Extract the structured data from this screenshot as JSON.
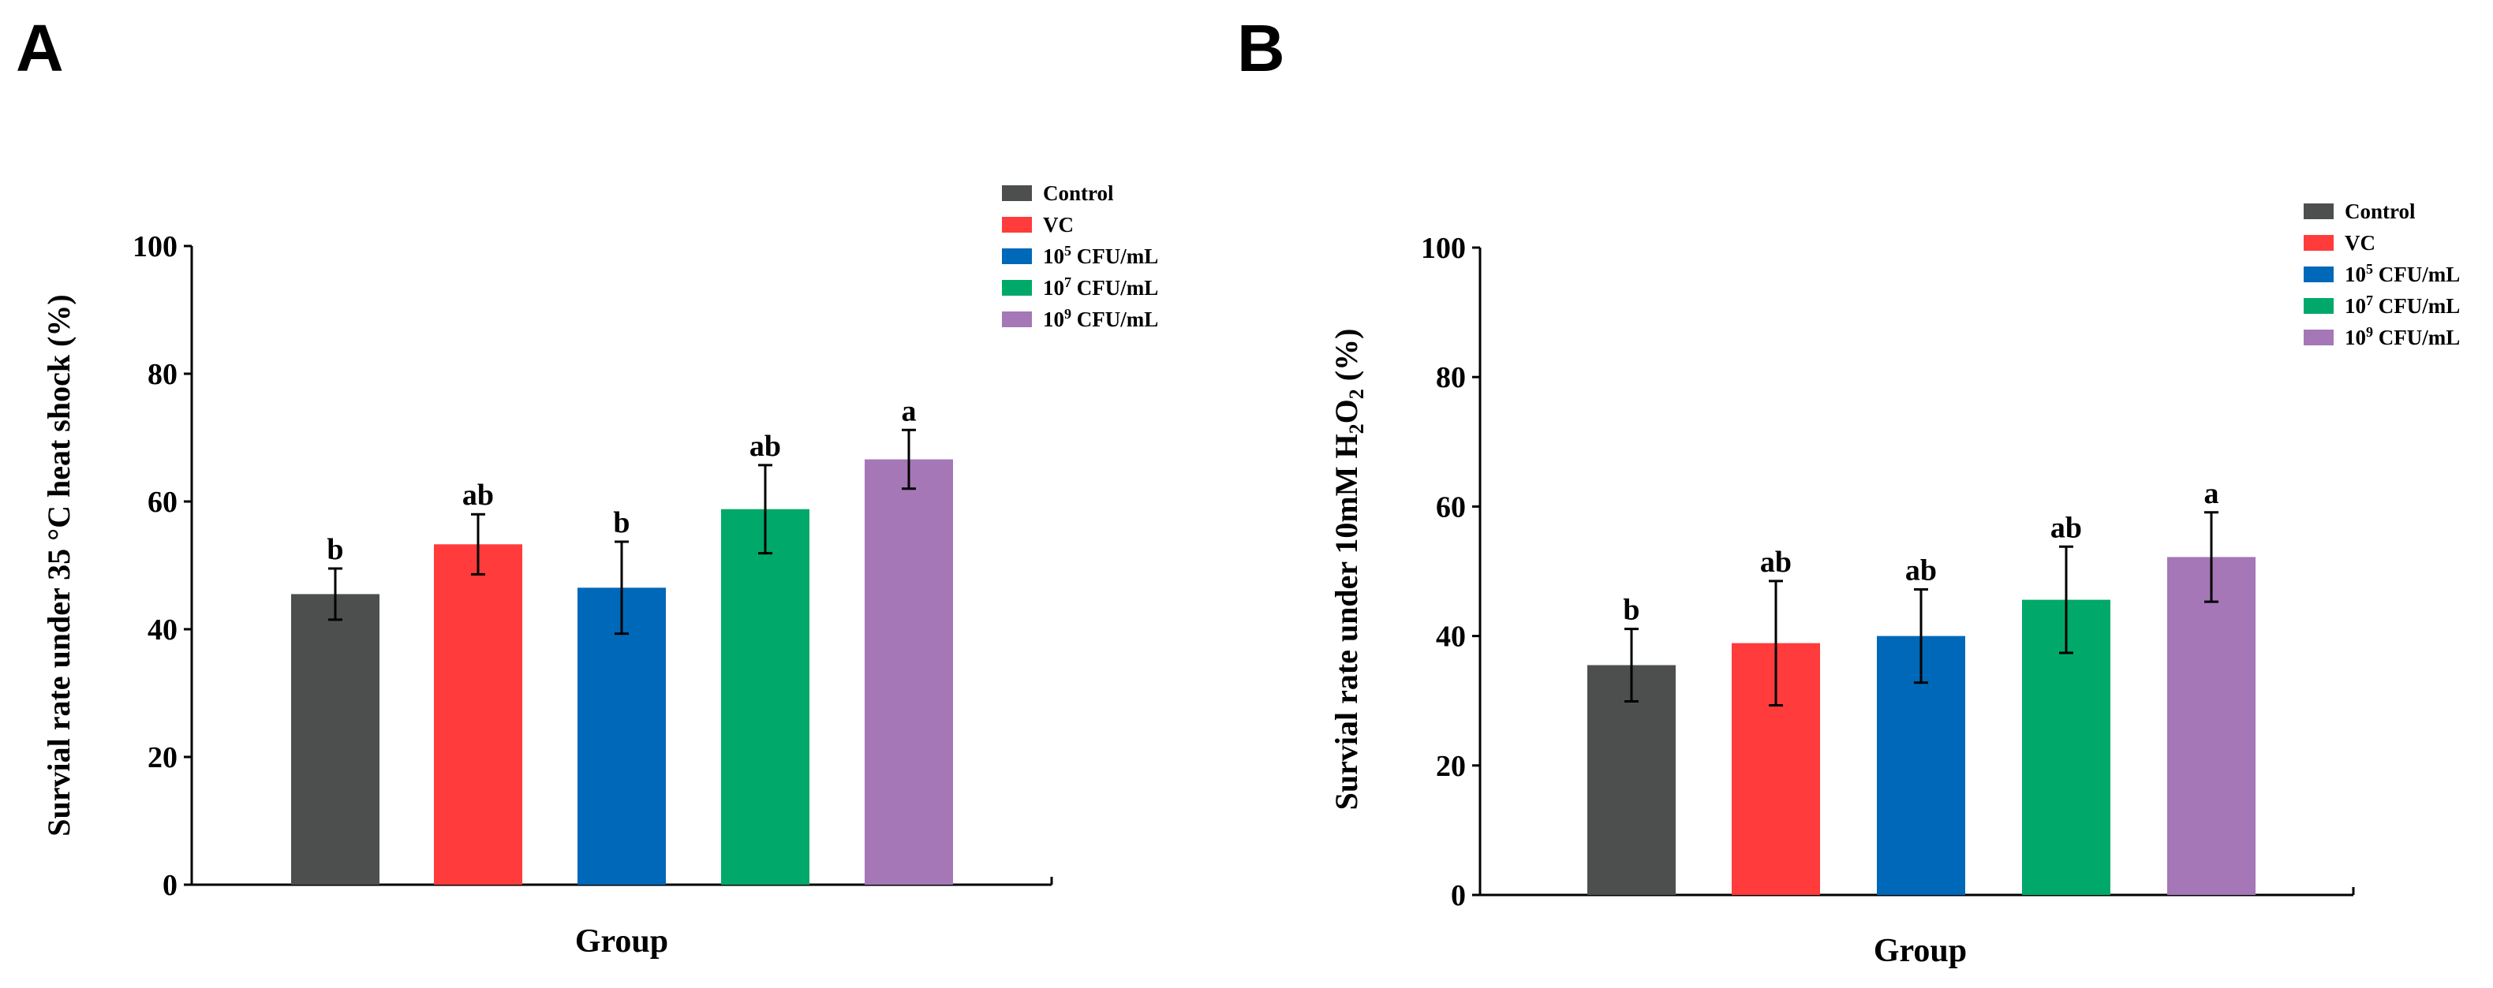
{
  "figure": {
    "panels": [
      "A",
      "B"
    ]
  },
  "legend": {
    "items": [
      {
        "base": "Control",
        "sup": "",
        "rest": "",
        "color": "#4d4f4f"
      },
      {
        "base": "VC",
        "sup": "",
        "rest": "",
        "color": "#ff3b3b"
      },
      {
        "base": "10",
        "sup": "5",
        "rest": " CFU/mL",
        "color": "#0068b8"
      },
      {
        "base": "10",
        "sup": "7",
        "rest": " CFU/mL",
        "color": "#00a96a"
      },
      {
        "base": "10",
        "sup": "9",
        "rest": " CFU/mL",
        "color": "#a577b7"
      }
    ]
  },
  "chart_data": [
    {
      "type": "bar",
      "panel": "A",
      "categories": [
        "Control",
        "VC",
        "10^5 CFU/mL",
        "10^7 CFU/mL",
        "10^9 CFU/mL"
      ],
      "values": [
        45.5,
        53.3,
        46.5,
        58.8,
        66.6
      ],
      "errors": [
        4.0,
        4.7,
        7.2,
        6.9,
        4.6
      ],
      "significance": [
        "b",
        "ab",
        "b",
        "ab",
        "a"
      ],
      "colors": [
        "#4d4f4f",
        "#ff3b3b",
        "#0068b8",
        "#00a96a",
        "#a577b7"
      ],
      "xlabel": "Group",
      "ylabel": "Survial rate under 35 °C heat shock (%)",
      "ylim": [
        0,
        100
      ],
      "yticks": [
        0,
        20,
        40,
        60,
        80,
        100
      ]
    },
    {
      "type": "bar",
      "panel": "B",
      "categories": [
        "Control",
        "VC",
        "10^5 CFU/mL",
        "10^7 CFU/mL",
        "10^9 CFU/mL"
      ],
      "values": [
        35.5,
        38.9,
        40.0,
        45.6,
        52.2
      ],
      "errors": [
        5.6,
        9.6,
        7.2,
        8.2,
        6.9
      ],
      "significance": [
        "b",
        "ab",
        "ab",
        "ab",
        "a"
      ],
      "colors": [
        "#4d4f4f",
        "#ff3b3b",
        "#0068b8",
        "#00a96a",
        "#a577b7"
      ],
      "xlabel": "Group",
      "ylabel": {
        "before": "Survial rate under 10mM H",
        "sub1": "2",
        "mid": "O",
        "sub2": "2",
        "after": " (%)"
      },
      "ylim": [
        0,
        100
      ],
      "yticks": [
        0,
        20,
        40,
        60,
        80,
        100
      ]
    }
  ]
}
